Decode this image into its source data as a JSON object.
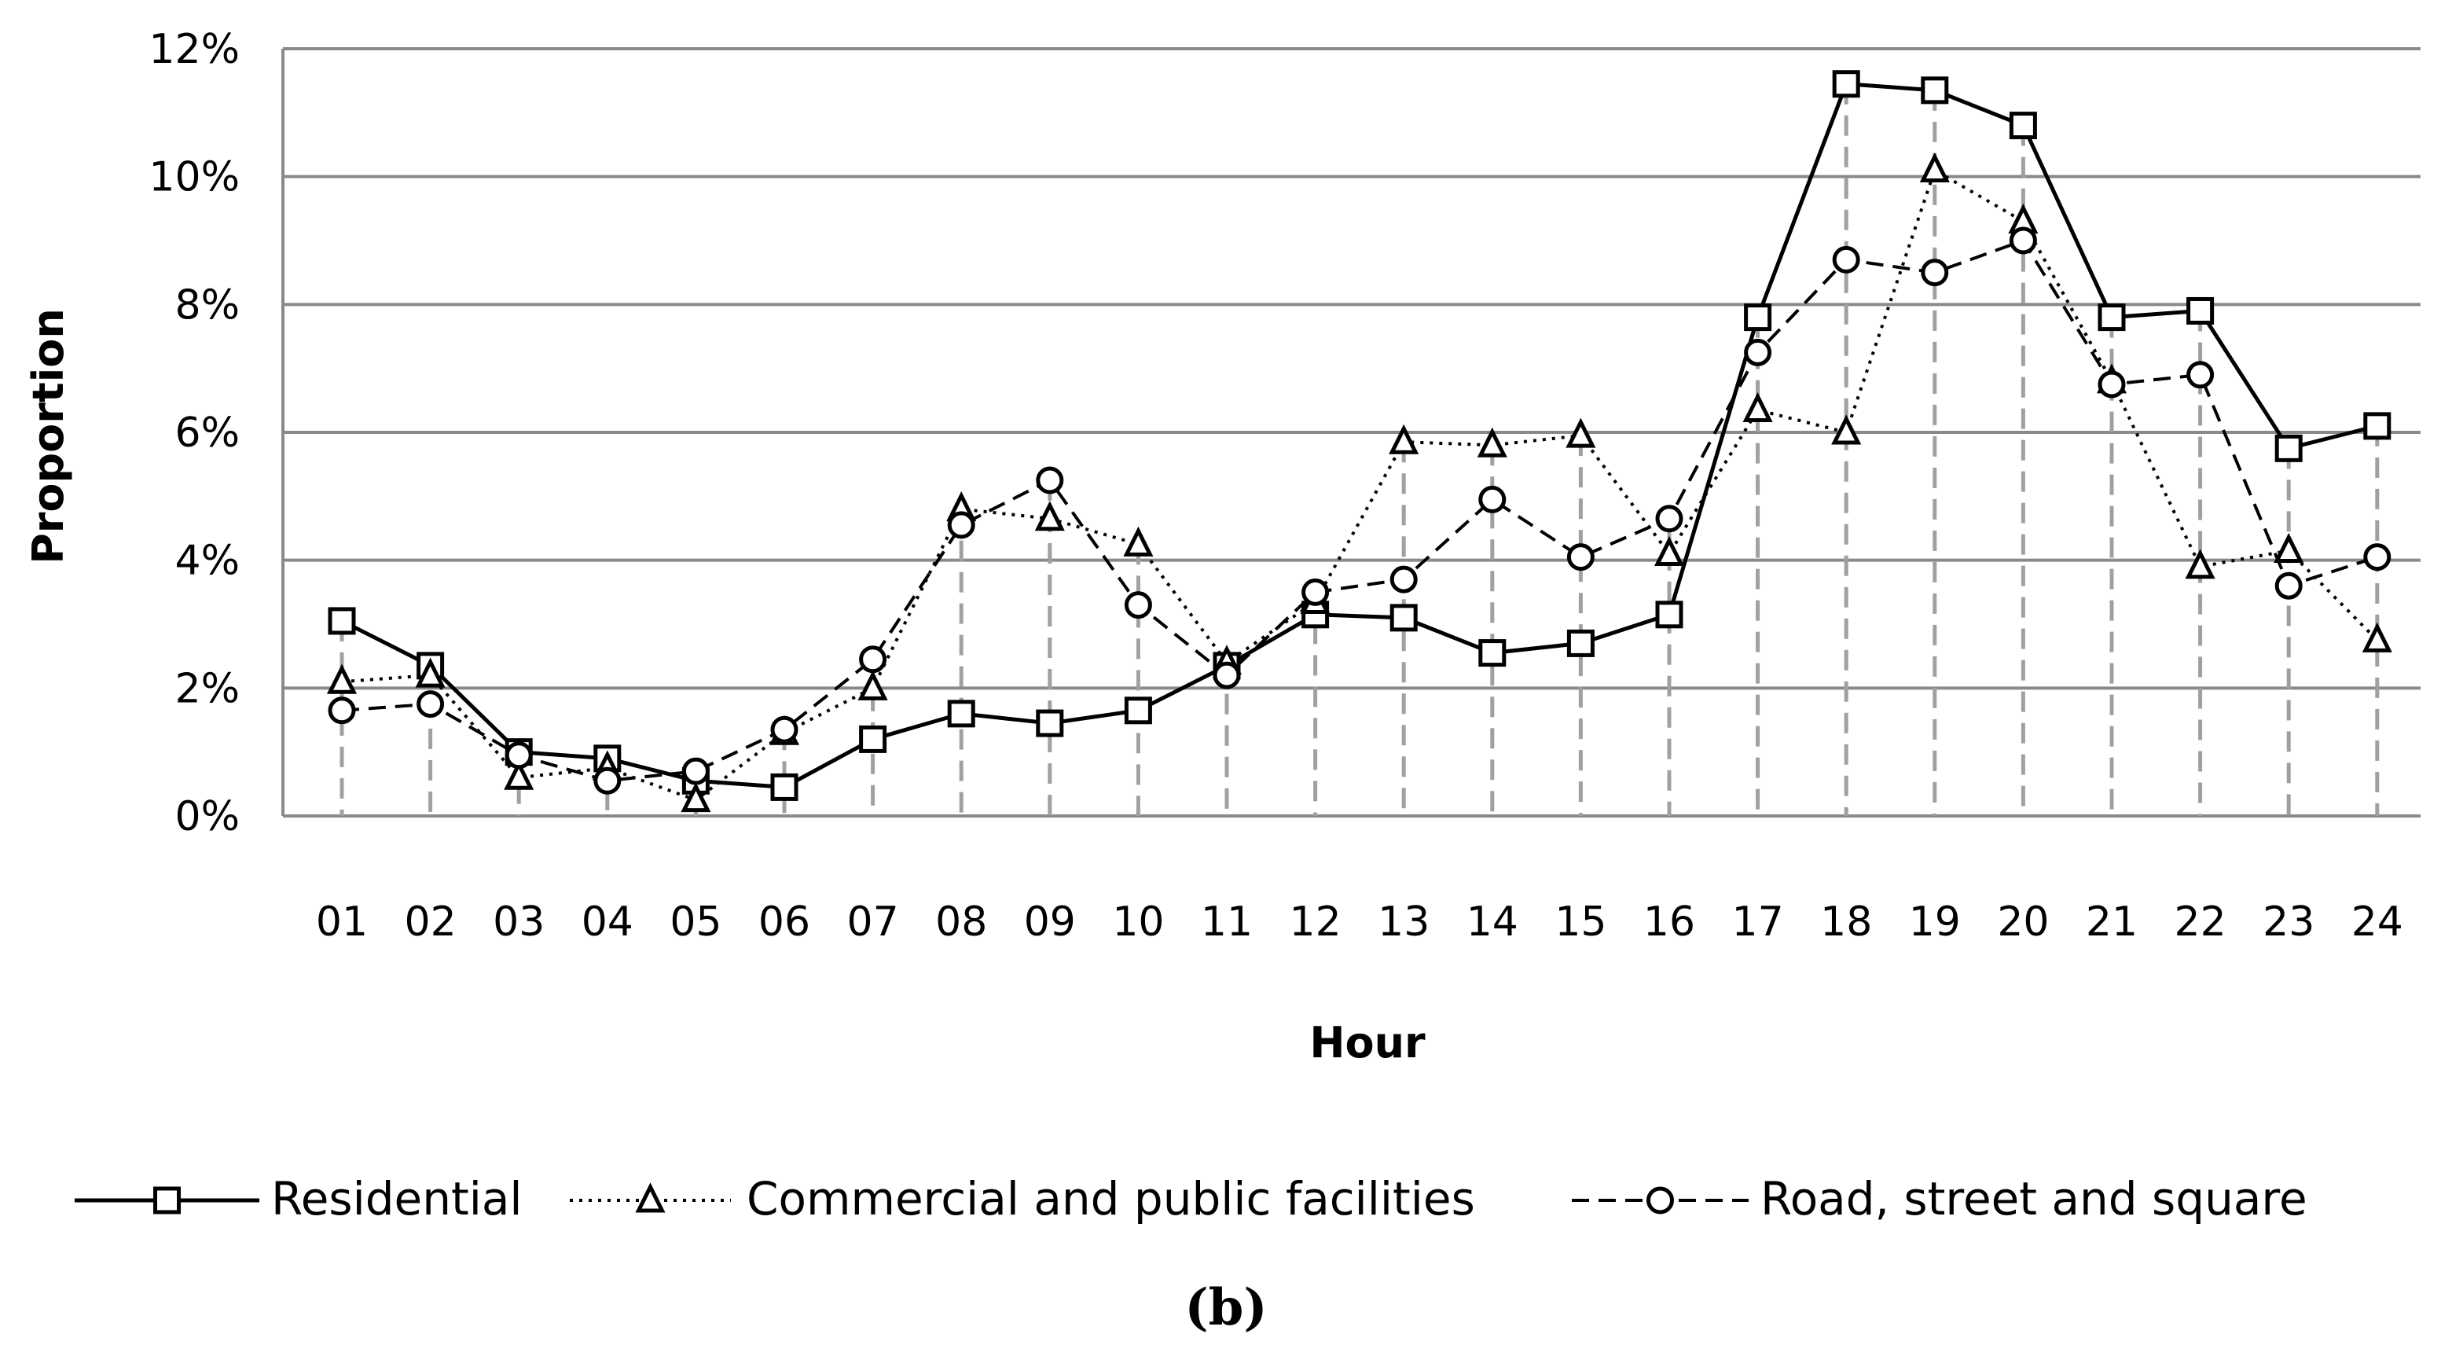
{
  "chart_data": {
    "type": "line",
    "panel_label": "(b)",
    "xlabel": "Hour",
    "ylabel": "Proportion",
    "categories": [
      "01",
      "02",
      "03",
      "04",
      "05",
      "06",
      "07",
      "08",
      "09",
      "10",
      "11",
      "12",
      "13",
      "14",
      "15",
      "16",
      "17",
      "18",
      "19",
      "20",
      "21",
      "22",
      "23",
      "24"
    ],
    "y_ticks": [
      "0%",
      "2%",
      "4%",
      "6%",
      "8%",
      "10%",
      "12%"
    ],
    "ylim": [
      0,
      12
    ],
    "y_unit": "%",
    "grid": "horizontal solid, vertical dashed drop lines at each hour",
    "legend_position": "bottom",
    "series": [
      {
        "name": "Residential",
        "line_style": "solid",
        "marker": "square",
        "values": [
          3.05,
          2.35,
          1.0,
          0.9,
          0.55,
          0.45,
          1.2,
          1.6,
          1.45,
          1.65,
          2.35,
          3.15,
          3.1,
          2.55,
          2.7,
          3.15,
          7.8,
          11.45,
          11.35,
          10.8,
          7.8,
          7.9,
          5.75,
          6.1
        ]
      },
      {
        "name": "Commercial and public facilities",
        "line_style": "dotted",
        "marker": "triangle",
        "values": [
          2.1,
          2.2,
          0.6,
          0.75,
          0.25,
          1.3,
          2.0,
          4.8,
          4.65,
          4.25,
          2.4,
          3.35,
          5.85,
          5.8,
          5.95,
          4.1,
          6.35,
          6.0,
          10.1,
          9.3,
          6.8,
          3.9,
          4.15,
          2.75
        ]
      },
      {
        "name": "Road, street and square",
        "line_style": "dashed",
        "marker": "circle",
        "values": [
          1.65,
          1.75,
          0.95,
          0.55,
          0.7,
          1.35,
          2.45,
          4.55,
          5.25,
          3.3,
          2.2,
          3.5,
          3.7,
          4.95,
          4.05,
          4.65,
          7.25,
          8.7,
          8.5,
          9.0,
          6.75,
          6.9,
          3.6,
          4.05
        ]
      }
    ]
  }
}
